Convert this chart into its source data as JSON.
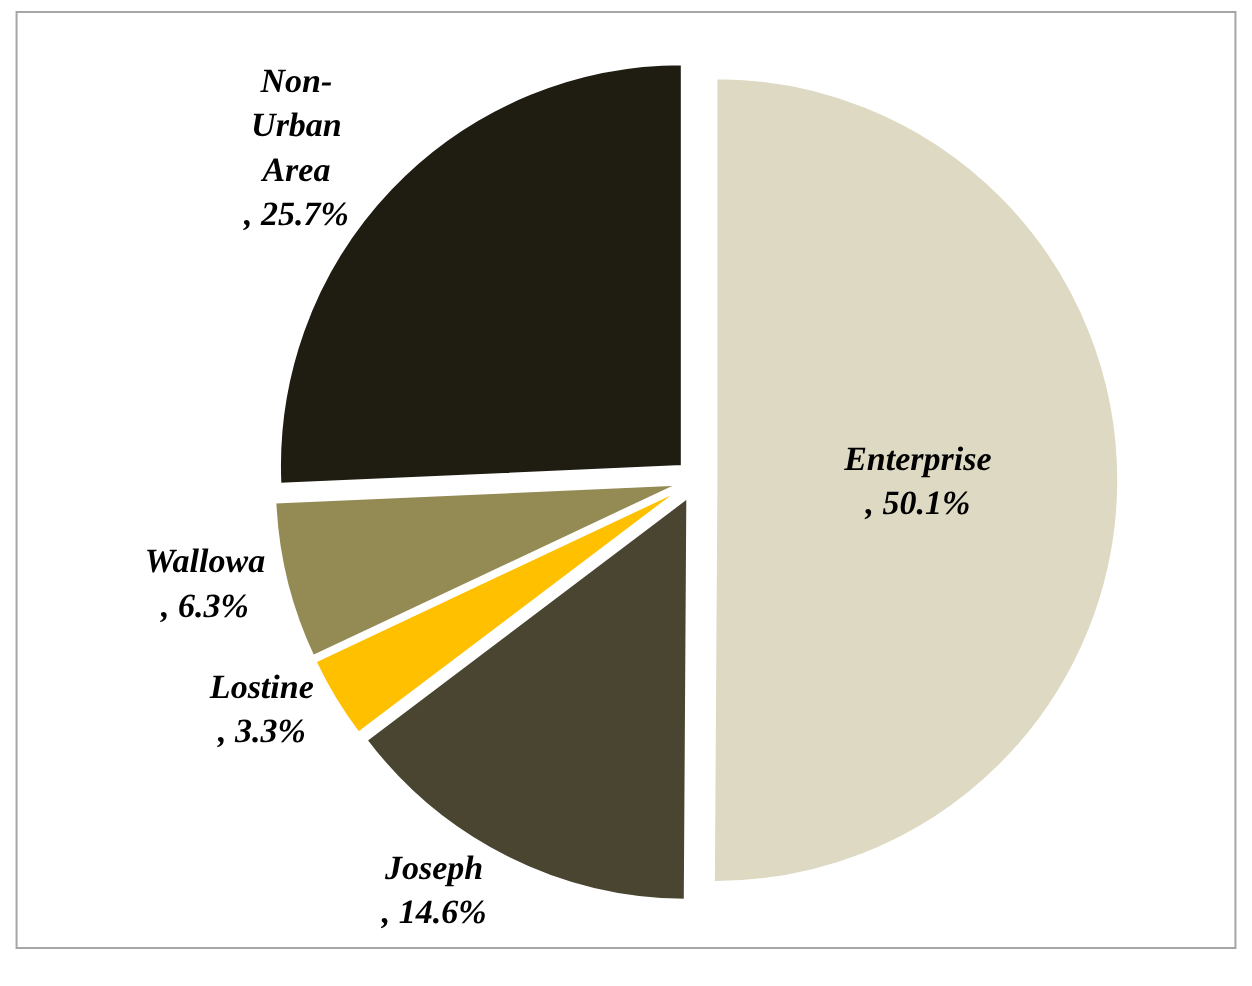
{
  "chart_data": {
    "type": "pie",
    "categories": [
      "Enterprise",
      "Joseph",
      "Lostine",
      "Wallowa",
      "Non-Urban Area"
    ],
    "values": [
      50.1,
      14.6,
      3.3,
      6.3,
      25.7
    ],
    "colors": [
      "#ddd9c3",
      "#4a4530",
      "#ffc000",
      "#948a54",
      "#1f1c12"
    ],
    "value_labels": [
      ", 50.1%",
      ", 14.6%",
      ", 3.3%",
      ", 6.3%",
      ", 25.7%"
    ],
    "legend": false
  }
}
